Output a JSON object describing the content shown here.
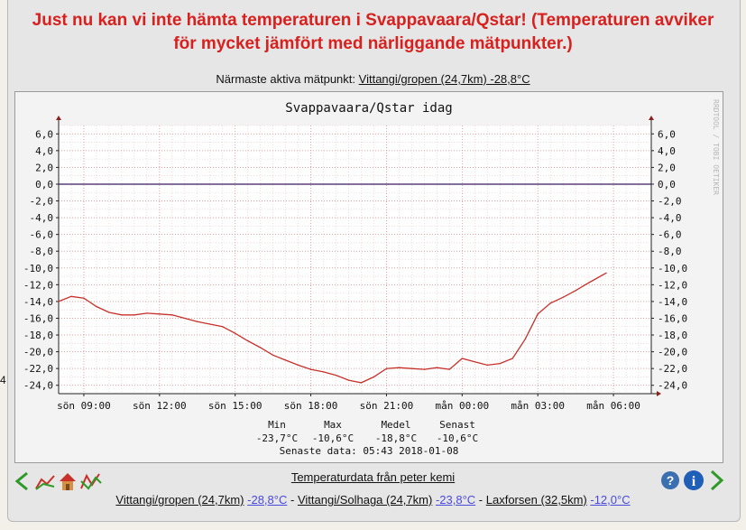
{
  "warning": {
    "line1": "Just nu kan vi inte hämta temperaturen i Svappavaara/Qstar! (Temperaturen avviker",
    "line2": "för mycket jämfört med närliggande mätpunkter.)"
  },
  "nearest": {
    "label": "Närmaste aktiva mätpunkt:",
    "link": "Vittangi/gropen (24,7km) -28,8°C"
  },
  "chart_data": {
    "type": "line",
    "title": "Svappavaara/Qstar idag",
    "watermark": "RRDTOOL / TOBI OETIKER",
    "x_ticks": [
      "sön 09:00",
      "sön 12:00",
      "sön 15:00",
      "sön 18:00",
      "sön 21:00",
      "mån 00:00",
      "mån 03:00",
      "mån 06:00"
    ],
    "y_ticks": [
      "6,0",
      "4,0",
      "2,0",
      "0,0",
      "-2,0",
      "-4,0",
      "-6,0",
      "-8,0",
      "-10,0",
      "-12,0",
      "-14,0",
      "-16,0",
      "-18,0",
      "-20,0",
      "-22,0",
      "-24,0"
    ],
    "ylim": [
      -25,
      7
    ],
    "xlim": [
      "sön 08:00",
      "mån 07:30"
    ],
    "grid": true,
    "series": [
      {
        "color": "#c8302a",
        "x": [
          "08:00",
          "08:30",
          "09:00",
          "09:30",
          "10:00",
          "10:30",
          "11:00",
          "11:30",
          "12:00",
          "12:30",
          "13:00",
          "13:30",
          "14:00",
          "14:30",
          "15:00",
          "15:30",
          "16:00",
          "16:30",
          "17:00",
          "17:30",
          "18:00",
          "18:30",
          "19:00",
          "19:30",
          "20:00",
          "20:30",
          "21:00",
          "21:30",
          "22:00",
          "22:30",
          "23:00",
          "23:30",
          "00:00",
          "00:30",
          "01:00",
          "01:30",
          "02:00",
          "02:30",
          "03:00",
          "03:30",
          "04:00",
          "04:30",
          "05:00",
          "05:43"
        ],
        "values": [
          -14.0,
          -13.4,
          -13.6,
          -14.6,
          -15.3,
          -15.6,
          -15.6,
          -15.4,
          -15.5,
          -15.6,
          -16.0,
          -16.4,
          -16.7,
          -17.0,
          -17.8,
          -18.7,
          -19.5,
          -20.4,
          -21.0,
          -21.6,
          -22.1,
          -22.4,
          -22.8,
          -23.4,
          -23.7,
          -23.0,
          -22.0,
          -21.9,
          -22.0,
          -22.1,
          -21.9,
          -22.1,
          -20.8,
          -21.2,
          -21.6,
          -21.4,
          -20.8,
          -18.5,
          -15.5,
          -14.2,
          -13.5,
          -12.7,
          -11.8,
          -10.6
        ]
      }
    ],
    "stats": {
      "labels": [
        "Min",
        "Max",
        "Medel",
        "Senast"
      ],
      "values": [
        "-23,7°C",
        "-10,6°C",
        "-18,8°C",
        "-10,6°C"
      ],
      "senaste": "Senaste data: 05:43 2018-01-08"
    }
  },
  "source": {
    "link": "Temperaturdata från peter kemi"
  },
  "stations": [
    {
      "name": "Vittangi/gropen (24,7km)",
      "temp": "-28,8°C"
    },
    {
      "name": "Vittangi/Solhaga (24,7km)",
      "temp": "-23,8°C"
    },
    {
      "name": "Laxforsen (32,5km)",
      "temp": "-12,0°C"
    }
  ],
  "stations_sep": "-",
  "nav": {
    "left_icons": [
      "arrow-left-icon",
      "graph-icon",
      "home-icon",
      "multi-graph-icon"
    ],
    "right_icons": [
      "help-icon",
      "info-icon",
      "arrow-right-icon"
    ]
  },
  "edge_mark": "4"
}
